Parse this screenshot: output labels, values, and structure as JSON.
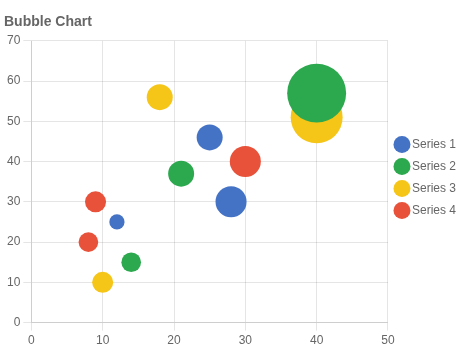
{
  "chart_data": {
    "type": "bubble",
    "title": "Bubble Chart",
    "xlim": [
      0,
      50
    ],
    "ylim": [
      0,
      70
    ],
    "xticks": [
      0,
      10,
      20,
      30,
      40,
      50
    ],
    "yticks": [
      0,
      10,
      20,
      30,
      40,
      50,
      60,
      70
    ],
    "grid": true,
    "legend": "right",
    "series": [
      {
        "name": "Series 1",
        "color": "#4472C4",
        "x": [
          12,
          25,
          28
        ],
        "y": [
          25,
          46,
          30
        ],
        "size": [
          120,
          350,
          500
        ]
      },
      {
        "name": "Series 2",
        "color": "#2CA84E",
        "x": [
          14,
          21,
          40
        ],
        "y": [
          15,
          37,
          57
        ],
        "size": [
          200,
          350,
          1800
        ]
      },
      {
        "name": "Series 3",
        "color": "#F5C518",
        "x": [
          10,
          18,
          40
        ],
        "y": [
          10,
          56,
          51
        ],
        "size": [
          230,
          350,
          1400
        ]
      },
      {
        "name": "Series 4",
        "color": "#E8523A",
        "x": [
          8,
          9,
          30
        ],
        "y": [
          20,
          30,
          40
        ],
        "size": [
          200,
          230,
          500
        ]
      }
    ]
  }
}
